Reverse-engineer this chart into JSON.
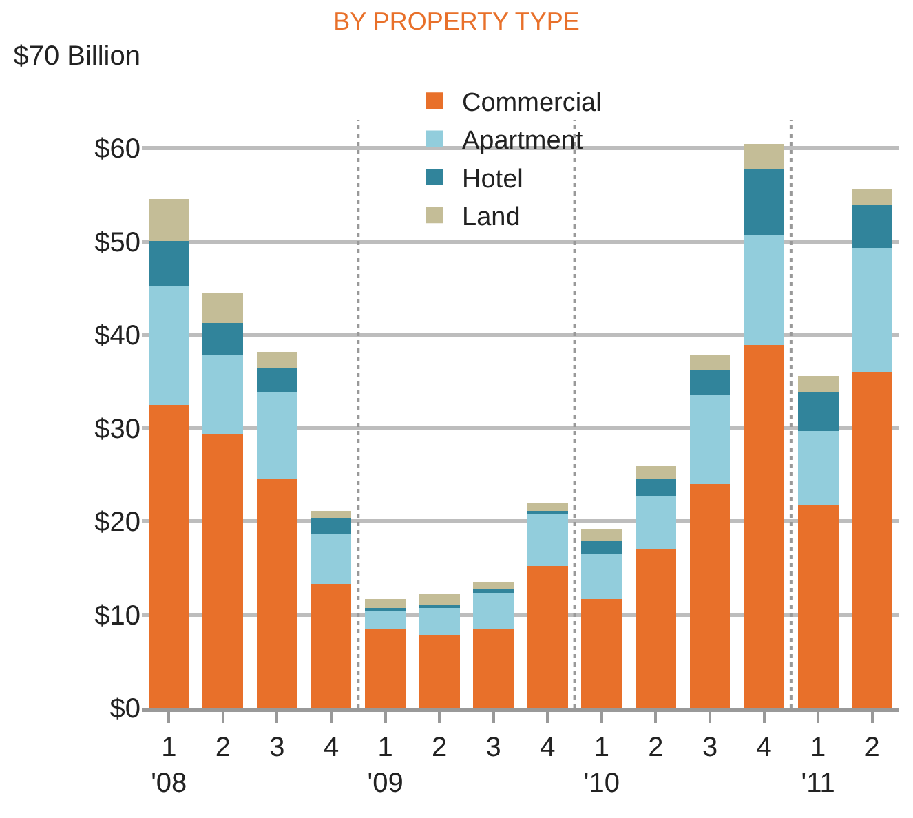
{
  "chart_data": {
    "type": "bar",
    "title": "BY PROPERTY TYPE",
    "stacked": true,
    "categories": [
      "1\n'08",
      "2",
      "3",
      "4",
      "1\n'09",
      "2",
      "3",
      "4",
      "1\n'10",
      "2",
      "3",
      "4",
      "1\n'11",
      "2"
    ],
    "series": [
      {
        "name": "Commercial",
        "color": "#e8702a",
        "values": [
          32.5,
          29.3,
          24.5,
          13.3,
          8.5,
          7.8,
          8.5,
          15.2,
          11.7,
          17.0,
          24.0,
          38.9,
          21.8,
          36.0
        ]
      },
      {
        "name": "Apartment",
        "color": "#92cddc",
        "values": [
          12.7,
          8.5,
          9.3,
          5.4,
          1.9,
          2.9,
          3.8,
          5.6,
          4.8,
          5.7,
          9.5,
          11.8,
          7.9,
          13.3
        ]
      },
      {
        "name": "Hotel",
        "color": "#31849b",
        "values": [
          4.9,
          3.5,
          2.7,
          1.7,
          0.3,
          0.4,
          0.4,
          0.3,
          1.4,
          1.8,
          2.7,
          7.1,
          4.1,
          4.6
        ]
      },
      {
        "name": "Land",
        "color": "#c4bd97",
        "values": [
          4.5,
          3.2,
          1.7,
          0.7,
          1.0,
          1.1,
          0.8,
          0.9,
          1.3,
          1.4,
          1.7,
          2.7,
          1.8,
          1.7
        ]
      }
    ],
    "ylim": [
      0,
      70
    ],
    "yticks": [
      {
        "value": 0,
        "label": "$0"
      },
      {
        "value": 10,
        "label": "$10"
      },
      {
        "value": 20,
        "label": "$20"
      },
      {
        "value": 30,
        "label": "$30"
      },
      {
        "value": 40,
        "label": "$40"
      },
      {
        "value": 50,
        "label": "$50"
      },
      {
        "value": 60,
        "label": "$60"
      },
      {
        "value": 70,
        "label": "$70 Billion"
      }
    ],
    "grid": "y",
    "legend": "top"
  }
}
